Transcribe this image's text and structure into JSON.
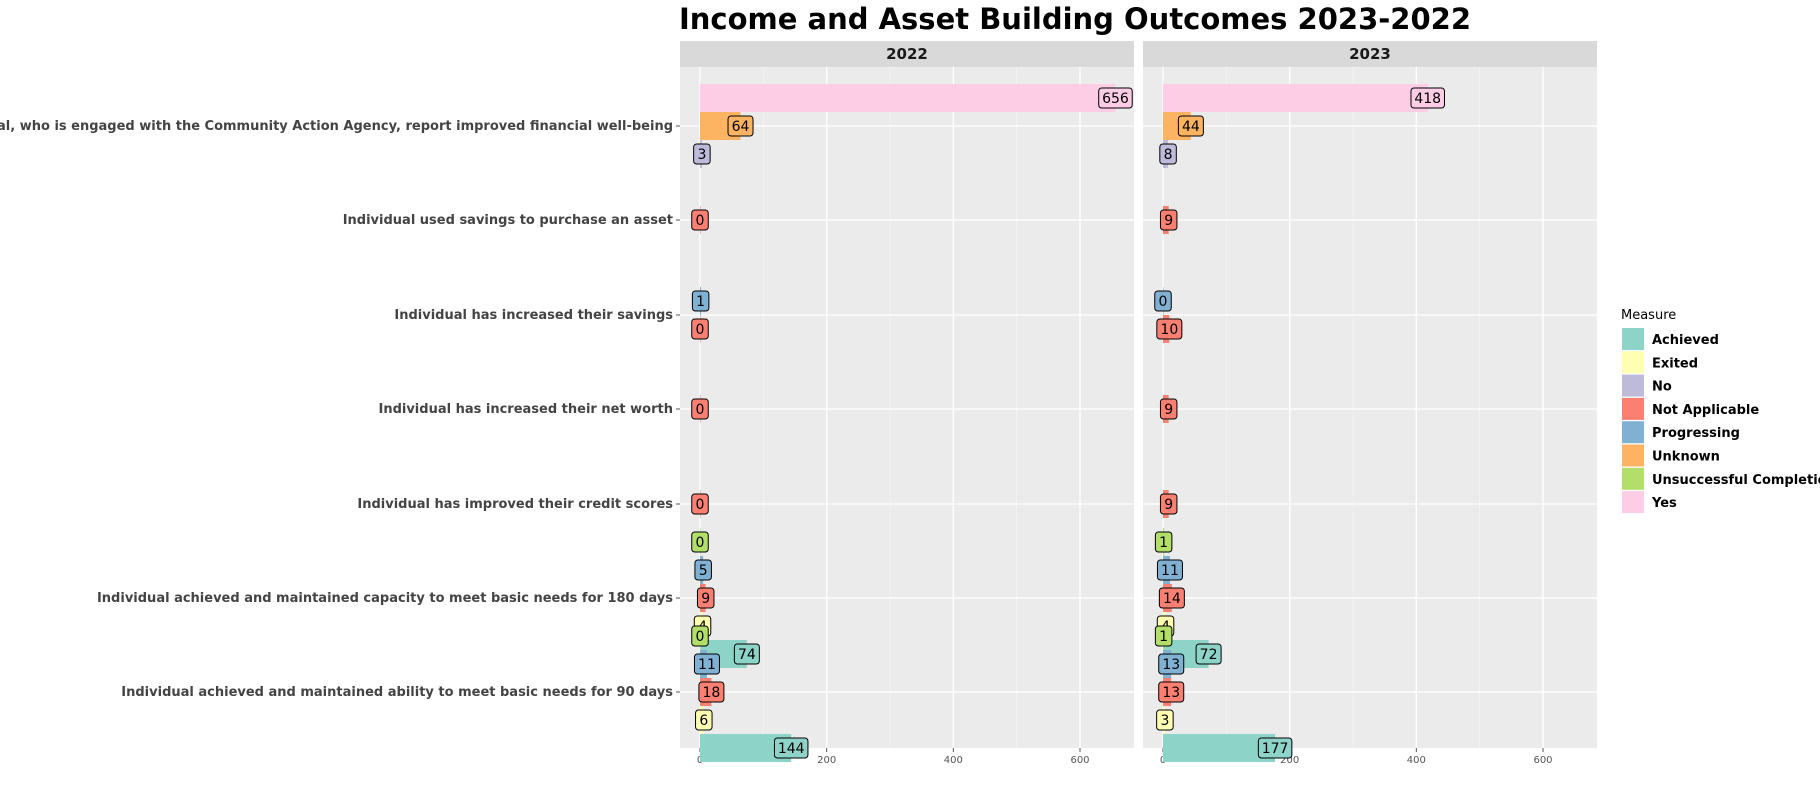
{
  "chart_data": {
    "type": "bar",
    "orientation": "horizontal",
    "title": "Income and Asset Building Outcomes 2023-2022",
    "xlim": [
      0,
      680
    ],
    "x_ticks": [
      0,
      200,
      400,
      600
    ],
    "grid": true,
    "legend_placement": "right",
    "legend_title": "Measure",
    "categories": [
      "This individual, who is engaged with the Community Action Agency, report improved financial well-being",
      "Individual used savings to purchase an asset",
      "Individual has increased their savings",
      "Individual has increased their net worth",
      "Individual has improved their credit scores",
      "Individual achieved and maintained capacity to meet basic needs for 180 days",
      "Individual achieved and maintained ability to meet basic needs for 90 days"
    ],
    "measures": [
      {
        "name": "Achieved",
        "color": "#8dd3c7"
      },
      {
        "name": "Exited",
        "color": "#ffffb3"
      },
      {
        "name": "No",
        "color": "#bebada"
      },
      {
        "name": "Not Applicable",
        "color": "#fb8072"
      },
      {
        "name": "Progressing",
        "color": "#80b1d3"
      },
      {
        "name": "Unknown",
        "color": "#fdb462"
      },
      {
        "name": "Unsuccessful Completion",
        "color": "#b3de69"
      },
      {
        "name": "Yes",
        "color": "#fccde5"
      }
    ],
    "panels": [
      {
        "label": "2022",
        "groups": [
          [
            {
              "measure": "No",
              "value": 3
            },
            {
              "measure": "Unknown",
              "value": 64
            },
            {
              "measure": "Yes",
              "value": 656
            }
          ],
          [
            {
              "measure": "Not Applicable",
              "value": 0
            }
          ],
          [
            {
              "measure": "Not Applicable",
              "value": 0
            },
            {
              "measure": "Progressing",
              "value": 1
            }
          ],
          [
            {
              "measure": "Not Applicable",
              "value": 0
            }
          ],
          [
            {
              "measure": "Not Applicable",
              "value": 0
            }
          ],
          [
            {
              "measure": "Achieved",
              "value": 74
            },
            {
              "measure": "Exited",
              "value": 4
            },
            {
              "measure": "Not Applicable",
              "value": 9
            },
            {
              "measure": "Progressing",
              "value": 5
            },
            {
              "measure": "Unsuccessful Completion",
              "value": 0
            }
          ],
          [
            {
              "measure": "Achieved",
              "value": 144
            },
            {
              "measure": "Exited",
              "value": 6
            },
            {
              "measure": "Not Applicable",
              "value": 18
            },
            {
              "measure": "Progressing",
              "value": 11
            },
            {
              "measure": "Unsuccessful Completion",
              "value": 0
            }
          ]
        ]
      },
      {
        "label": "2023",
        "groups": [
          [
            {
              "measure": "No",
              "value": 8
            },
            {
              "measure": "Unknown",
              "value": 44
            },
            {
              "measure": "Yes",
              "value": 418
            }
          ],
          [
            {
              "measure": "Not Applicable",
              "value": 9
            }
          ],
          [
            {
              "measure": "Not Applicable",
              "value": 10
            },
            {
              "measure": "Progressing",
              "value": 0
            }
          ],
          [
            {
              "measure": "Not Applicable",
              "value": 9
            }
          ],
          [
            {
              "measure": "Not Applicable",
              "value": 9
            }
          ],
          [
            {
              "measure": "Achieved",
              "value": 72
            },
            {
              "measure": "Exited",
              "value": 4
            },
            {
              "measure": "Not Applicable",
              "value": 14
            },
            {
              "measure": "Progressing",
              "value": 11
            },
            {
              "measure": "Unsuccessful Completion",
              "value": 1
            }
          ],
          [
            {
              "measure": "Achieved",
              "value": 177
            },
            {
              "measure": "Exited",
              "value": 3
            },
            {
              "measure": "Not Applicable",
              "value": 13
            },
            {
              "measure": "Progressing",
              "value": 13
            },
            {
              "measure": "Unsuccessful Completion",
              "value": 1
            }
          ]
        ]
      }
    ]
  }
}
